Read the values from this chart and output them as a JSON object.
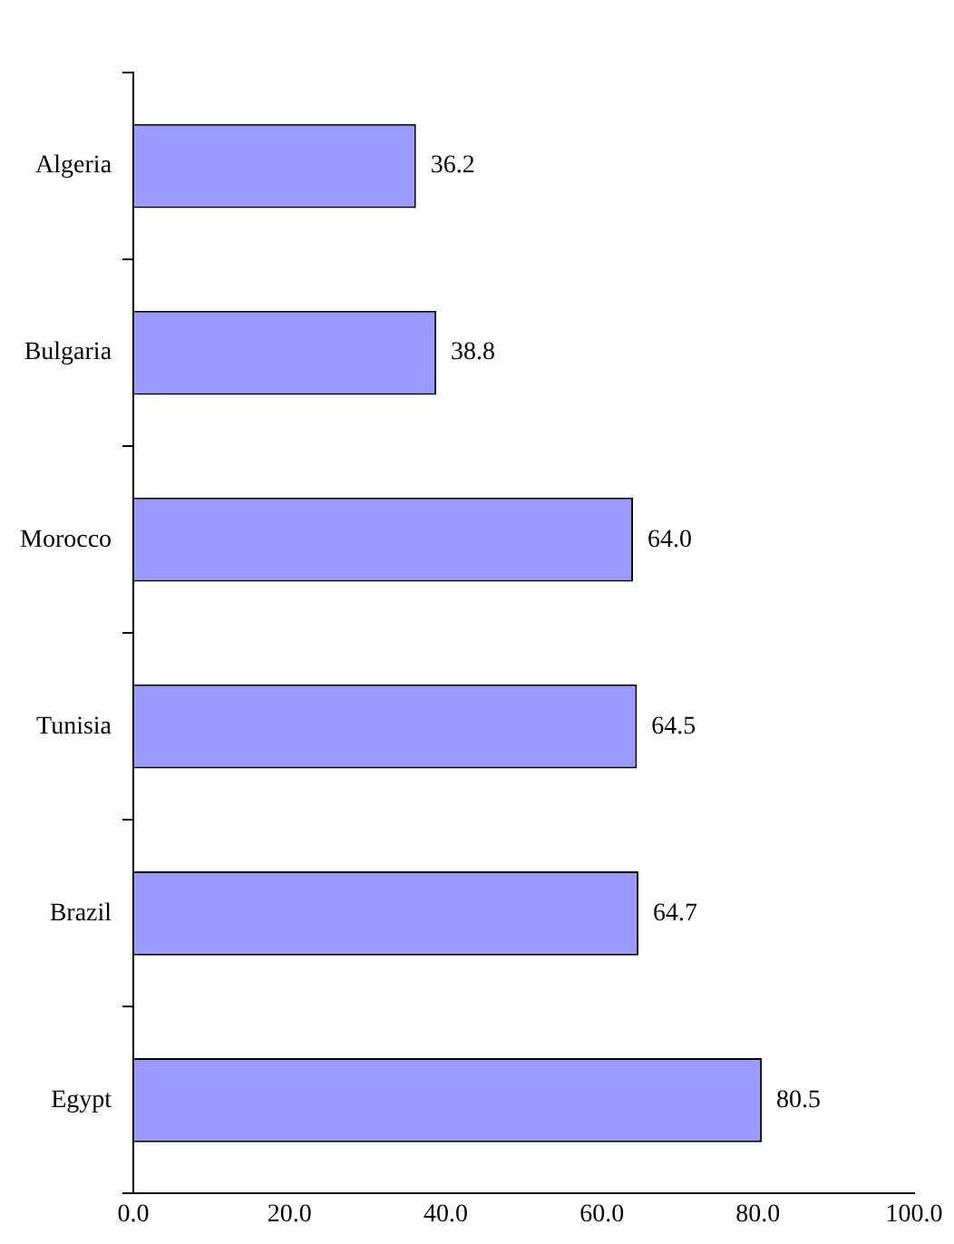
{
  "chart_data": {
    "type": "bar",
    "orientation": "horizontal",
    "categories": [
      "Algeria",
      "Bulgaria",
      "Morocco",
      "Tunisia",
      "Brazil",
      "Egypt"
    ],
    "values": [
      36.2,
      38.8,
      64.0,
      64.5,
      64.7,
      80.5
    ],
    "value_labels": [
      "36.2",
      "38.8",
      "64.0",
      "64.5",
      "64.7",
      "80.5"
    ],
    "color": "#9999ff",
    "xlim": [
      0,
      100
    ],
    "xticks": [
      {
        "value": 0,
        "label": "0.0"
      },
      {
        "value": 20,
        "label": "20.0"
      },
      {
        "value": 40,
        "label": "40.0"
      },
      {
        "value": 60,
        "label": "60.0"
      },
      {
        "value": 80,
        "label": "80.0"
      },
      {
        "value": 100,
        "label": "100.0"
      }
    ],
    "grid": false,
    "legend": false
  }
}
